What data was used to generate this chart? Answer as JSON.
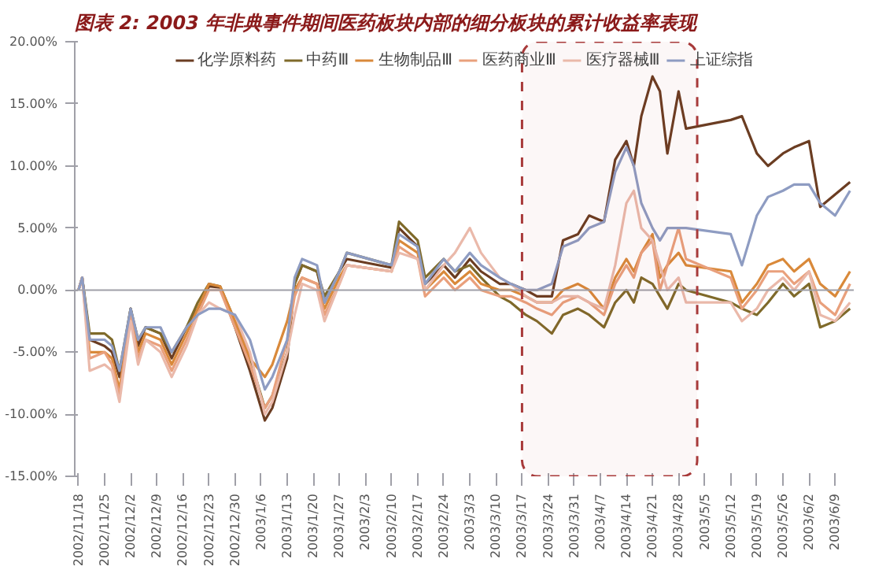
{
  "chart_data": {
    "type": "line",
    "title": "图表 2:  2003 年非典事件期间医药板块内部的细分板块的累计收益率表现",
    "x": [
      "2002-11-18",
      "2002-11-19",
      "2002-11-21",
      "2002-11-25",
      "2002-11-27",
      "2002-11-29",
      "2002-12-02",
      "2002-12-04",
      "2002-12-06",
      "2002-12-10",
      "2002-12-13",
      "2002-12-17",
      "2002-12-20",
      "2002-12-23",
      "2002-12-26",
      "2002-12-30",
      "2003-01-03",
      "2003-01-07",
      "2003-01-09",
      "2003-01-13",
      "2003-01-15",
      "2003-01-17",
      "2003-01-21",
      "2003-01-23",
      "2003-01-27",
      "2003-01-29",
      "2003-02-10",
      "2003-02-12",
      "2003-02-17",
      "2003-02-19",
      "2003-02-24",
      "2003-02-27",
      "2003-03-03",
      "2003-03-06",
      "2003-03-11",
      "2003-03-14",
      "2003-03-18",
      "2003-03-21",
      "2003-03-25",
      "2003-03-28",
      "2003-04-01",
      "2003-04-04",
      "2003-04-08",
      "2003-04-11",
      "2003-04-14",
      "2003-04-16",
      "2003-04-18",
      "2003-04-21",
      "2003-04-23",
      "2003-04-25",
      "2003-04-28",
      "2003-04-30",
      "2003-05-12",
      "2003-05-15",
      "2003-05-19",
      "2003-05-22",
      "2003-05-26",
      "2003-05-29",
      "2003-06-02",
      "2003-06-05",
      "2003-06-09",
      "2003-06-13"
    ],
    "series": [
      {
        "name": "化学原料药",
        "color": "#6b3d22",
        "values": [
          0,
          1,
          -4,
          -4.5,
          -5,
          -7,
          -1.5,
          -4.5,
          -3,
          -3.5,
          -5.5,
          -3,
          -1.5,
          0.3,
          0.2,
          -3,
          -6.5,
          -10.5,
          -9.5,
          -5.5,
          0.5,
          2,
          1.5,
          -1,
          1.5,
          2.5,
          1.8,
          5,
          3.5,
          0.5,
          2,
          1,
          2.5,
          1.5,
          0.5,
          0.5,
          0,
          -0.5,
          -0.5,
          4,
          4.5,
          6,
          5.5,
          10.5,
          12,
          10,
          14,
          17.2,
          16,
          11,
          16,
          13,
          13.7,
          14,
          11,
          10,
          11,
          11.5,
          12,
          6.7,
          7.7,
          8.7
        ]
      },
      {
        "name": "中药Ⅲ",
        "color": "#7f6a2a",
        "values": [
          0,
          1,
          -3.5,
          -3.5,
          -4,
          -6.5,
          -1.5,
          -4,
          -3,
          -3.5,
          -5,
          -3,
          -1,
          0.5,
          0.3,
          -2.5,
          -5.5,
          -9.5,
          -8.5,
          -5,
          0.5,
          2,
          1.5,
          -0.5,
          1.5,
          3,
          2,
          5.5,
          4,
          1,
          2.5,
          1.5,
          2,
          1,
          -0.5,
          -1,
          -2,
          -2.5,
          -3.5,
          -2,
          -1.5,
          -2,
          -3,
          -1,
          0,
          -1,
          1,
          0.5,
          -0.5,
          -1.5,
          0.5,
          0,
          -1,
          -1.5,
          -2,
          -1,
          0.5,
          -0.5,
          0.5,
          -3,
          -2.5,
          -1.5
        ]
      },
      {
        "name": "生物制品Ⅲ",
        "color": "#d9893a",
        "values": [
          0,
          1,
          -5,
          -5,
          -5.5,
          -8,
          -2,
          -5,
          -3.5,
          -4,
          -6,
          -3.5,
          -1.5,
          0.5,
          0.3,
          -2.5,
          -5.5,
          -7,
          -6,
          -2.5,
          0,
          1,
          0.5,
          -1.5,
          1,
          2,
          1.5,
          4,
          3,
          0,
          1.5,
          0.5,
          1.5,
          0.5,
          0,
          0,
          -0.5,
          -1,
          -1,
          0,
          0.5,
          0,
          -1.5,
          1,
          2.5,
          1.5,
          3,
          4.5,
          1,
          2,
          3,
          2,
          1.5,
          -1,
          0.5,
          2,
          2.5,
          1.5,
          2.5,
          0.5,
          -0.5,
          1.5
        ]
      },
      {
        "name": "医药商业Ⅲ",
        "color": "#e9a07c",
        "values": [
          0,
          1,
          -5.5,
          -5,
          -6,
          -8.5,
          -2,
          -5.5,
          -4,
          -4.5,
          -6.5,
          -4,
          -2,
          0,
          0,
          -3,
          -6,
          -9.5,
          -8.5,
          -4,
          -0.5,
          1,
          0.5,
          -2,
          0.5,
          2,
          1.5,
          3.5,
          2.5,
          -0.5,
          1,
          0,
          1,
          0,
          -0.5,
          -0.5,
          -1,
          -1.5,
          -2,
          -1,
          -0.5,
          -1,
          -2,
          0.5,
          2,
          1,
          3,
          4,
          0,
          2,
          5,
          2.5,
          1,
          -1.5,
          0,
          1.5,
          1.5,
          0.5,
          1.5,
          -1,
          -2,
          0.5
        ]
      },
      {
        "name": "医疗器械Ⅲ",
        "color": "#eab9aa",
        "values": [
          0,
          1,
          -6.5,
          -6,
          -6.5,
          -9,
          -2.5,
          -6,
          -4,
          -5,
          -7,
          -4.5,
          -2,
          -1,
          -1.5,
          -2,
          -5,
          -10,
          -9,
          -5,
          -2,
          0.5,
          0,
          -2.5,
          0.5,
          2,
          1.5,
          3,
          2.5,
          0,
          2,
          3,
          5,
          3,
          1,
          0.5,
          -0.5,
          -1,
          -1,
          -0.5,
          -0.5,
          -1,
          -1.5,
          2,
          7,
          8,
          5,
          4,
          2,
          0,
          1,
          -1,
          -1,
          -2.5,
          -1.5,
          0,
          1,
          0,
          1.5,
          -2,
          -2.5,
          -1
        ]
      },
      {
        "name": "上证综指",
        "color": "#8e9cc2",
        "values": [
          0,
          1,
          -4,
          -4,
          -4.5,
          -6.5,
          -1.5,
          -4,
          -3,
          -3,
          -5,
          -3,
          -2,
          -1.5,
          -1.5,
          -2,
          -4,
          -8,
          -7,
          -4,
          1,
          2.5,
          2,
          -1,
          1.5,
          3,
          2,
          4.5,
          3.5,
          0.5,
          2.5,
          1.5,
          3,
          2,
          1,
          0.5,
          0,
          0,
          0.5,
          3.5,
          4,
          5,
          5.5,
          9.5,
          11.5,
          10,
          7,
          5,
          4,
          5,
          5,
          5,
          4.5,
          2,
          6,
          7.5,
          8,
          8.5,
          8.5,
          7,
          6,
          8
        ]
      }
    ],
    "xlim": [
      "2002-11-17",
      "2003-06-14"
    ],
    "xticks": [
      {
        "value": "2002-11-18",
        "label": "2002/11/18"
      },
      {
        "value": "2002-11-25",
        "label": "2002/11/25"
      },
      {
        "value": "2002-12-02",
        "label": "2002/12/2"
      },
      {
        "value": "2002-12-09",
        "label": "2002/12/9"
      },
      {
        "value": "2002-12-16",
        "label": "2002/12/16"
      },
      {
        "value": "2002-12-23",
        "label": "2002/12/23"
      },
      {
        "value": "2002-12-30",
        "label": "2002/12/30"
      },
      {
        "value": "2003-01-06",
        "label": "2003/1/6"
      },
      {
        "value": "2003-01-13",
        "label": "2003/1/13"
      },
      {
        "value": "2003-01-20",
        "label": "2003/1/20"
      },
      {
        "value": "2003-01-27",
        "label": "2003/1/27"
      },
      {
        "value": "2003-02-03",
        "label": "2003/2/3"
      },
      {
        "value": "2003-02-10",
        "label": "2003/2/10"
      },
      {
        "value": "2003-02-17",
        "label": "2003/2/17"
      },
      {
        "value": "2003-02-24",
        "label": "2003/2/24"
      },
      {
        "value": "2003-03-03",
        "label": "2003/3/3"
      },
      {
        "value": "2003-03-10",
        "label": "2003/3/10"
      },
      {
        "value": "2003-03-17",
        "label": "2003/3/17"
      },
      {
        "value": "2003-03-24",
        "label": "2003/3/24"
      },
      {
        "value": "2003-03-31",
        "label": "2003/3/31"
      },
      {
        "value": "2003-04-07",
        "label": "2003/4/7"
      },
      {
        "value": "2003-04-14",
        "label": "2003/4/14"
      },
      {
        "value": "2003-04-21",
        "label": "2003/4/21"
      },
      {
        "value": "2003-04-28",
        "label": "2003/4/28"
      },
      {
        "value": "2003-05-05",
        "label": "2003/5/5"
      },
      {
        "value": "2003-05-12",
        "label": "2003/5/12"
      },
      {
        "value": "2003-05-19",
        "label": "2003/5/19"
      },
      {
        "value": "2003-05-26",
        "label": "2003/5/26"
      },
      {
        "value": "2003-06-02",
        "label": "2003/6/2"
      },
      {
        "value": "2003-06-09",
        "label": "2003/6/9"
      }
    ],
    "ylim": [
      -15,
      20
    ],
    "yticks": [
      {
        "value": -15,
        "label": "-15.00%"
      },
      {
        "value": -10,
        "label": "-10.00%"
      },
      {
        "value": -5,
        "label": "-5.00%"
      },
      {
        "value": 0,
        "label": "0.00%"
      },
      {
        "value": 5,
        "label": "5.00%"
      },
      {
        "value": 10,
        "label": "10.00%"
      },
      {
        "value": 15,
        "label": "15.00%"
      },
      {
        "value": 20,
        "label": "20.00%"
      }
    ],
    "ref_lines": [
      {
        "axis": "y",
        "value": 0,
        "color": "#a0a0a8"
      }
    ],
    "bands": [
      {
        "axis": "x",
        "from": "2003-03-17",
        "to": "2003-05-03",
        "color": "#a83a3a"
      }
    ],
    "grid": false,
    "legend": "top",
    "line_style": "solid",
    "marker": "none"
  }
}
